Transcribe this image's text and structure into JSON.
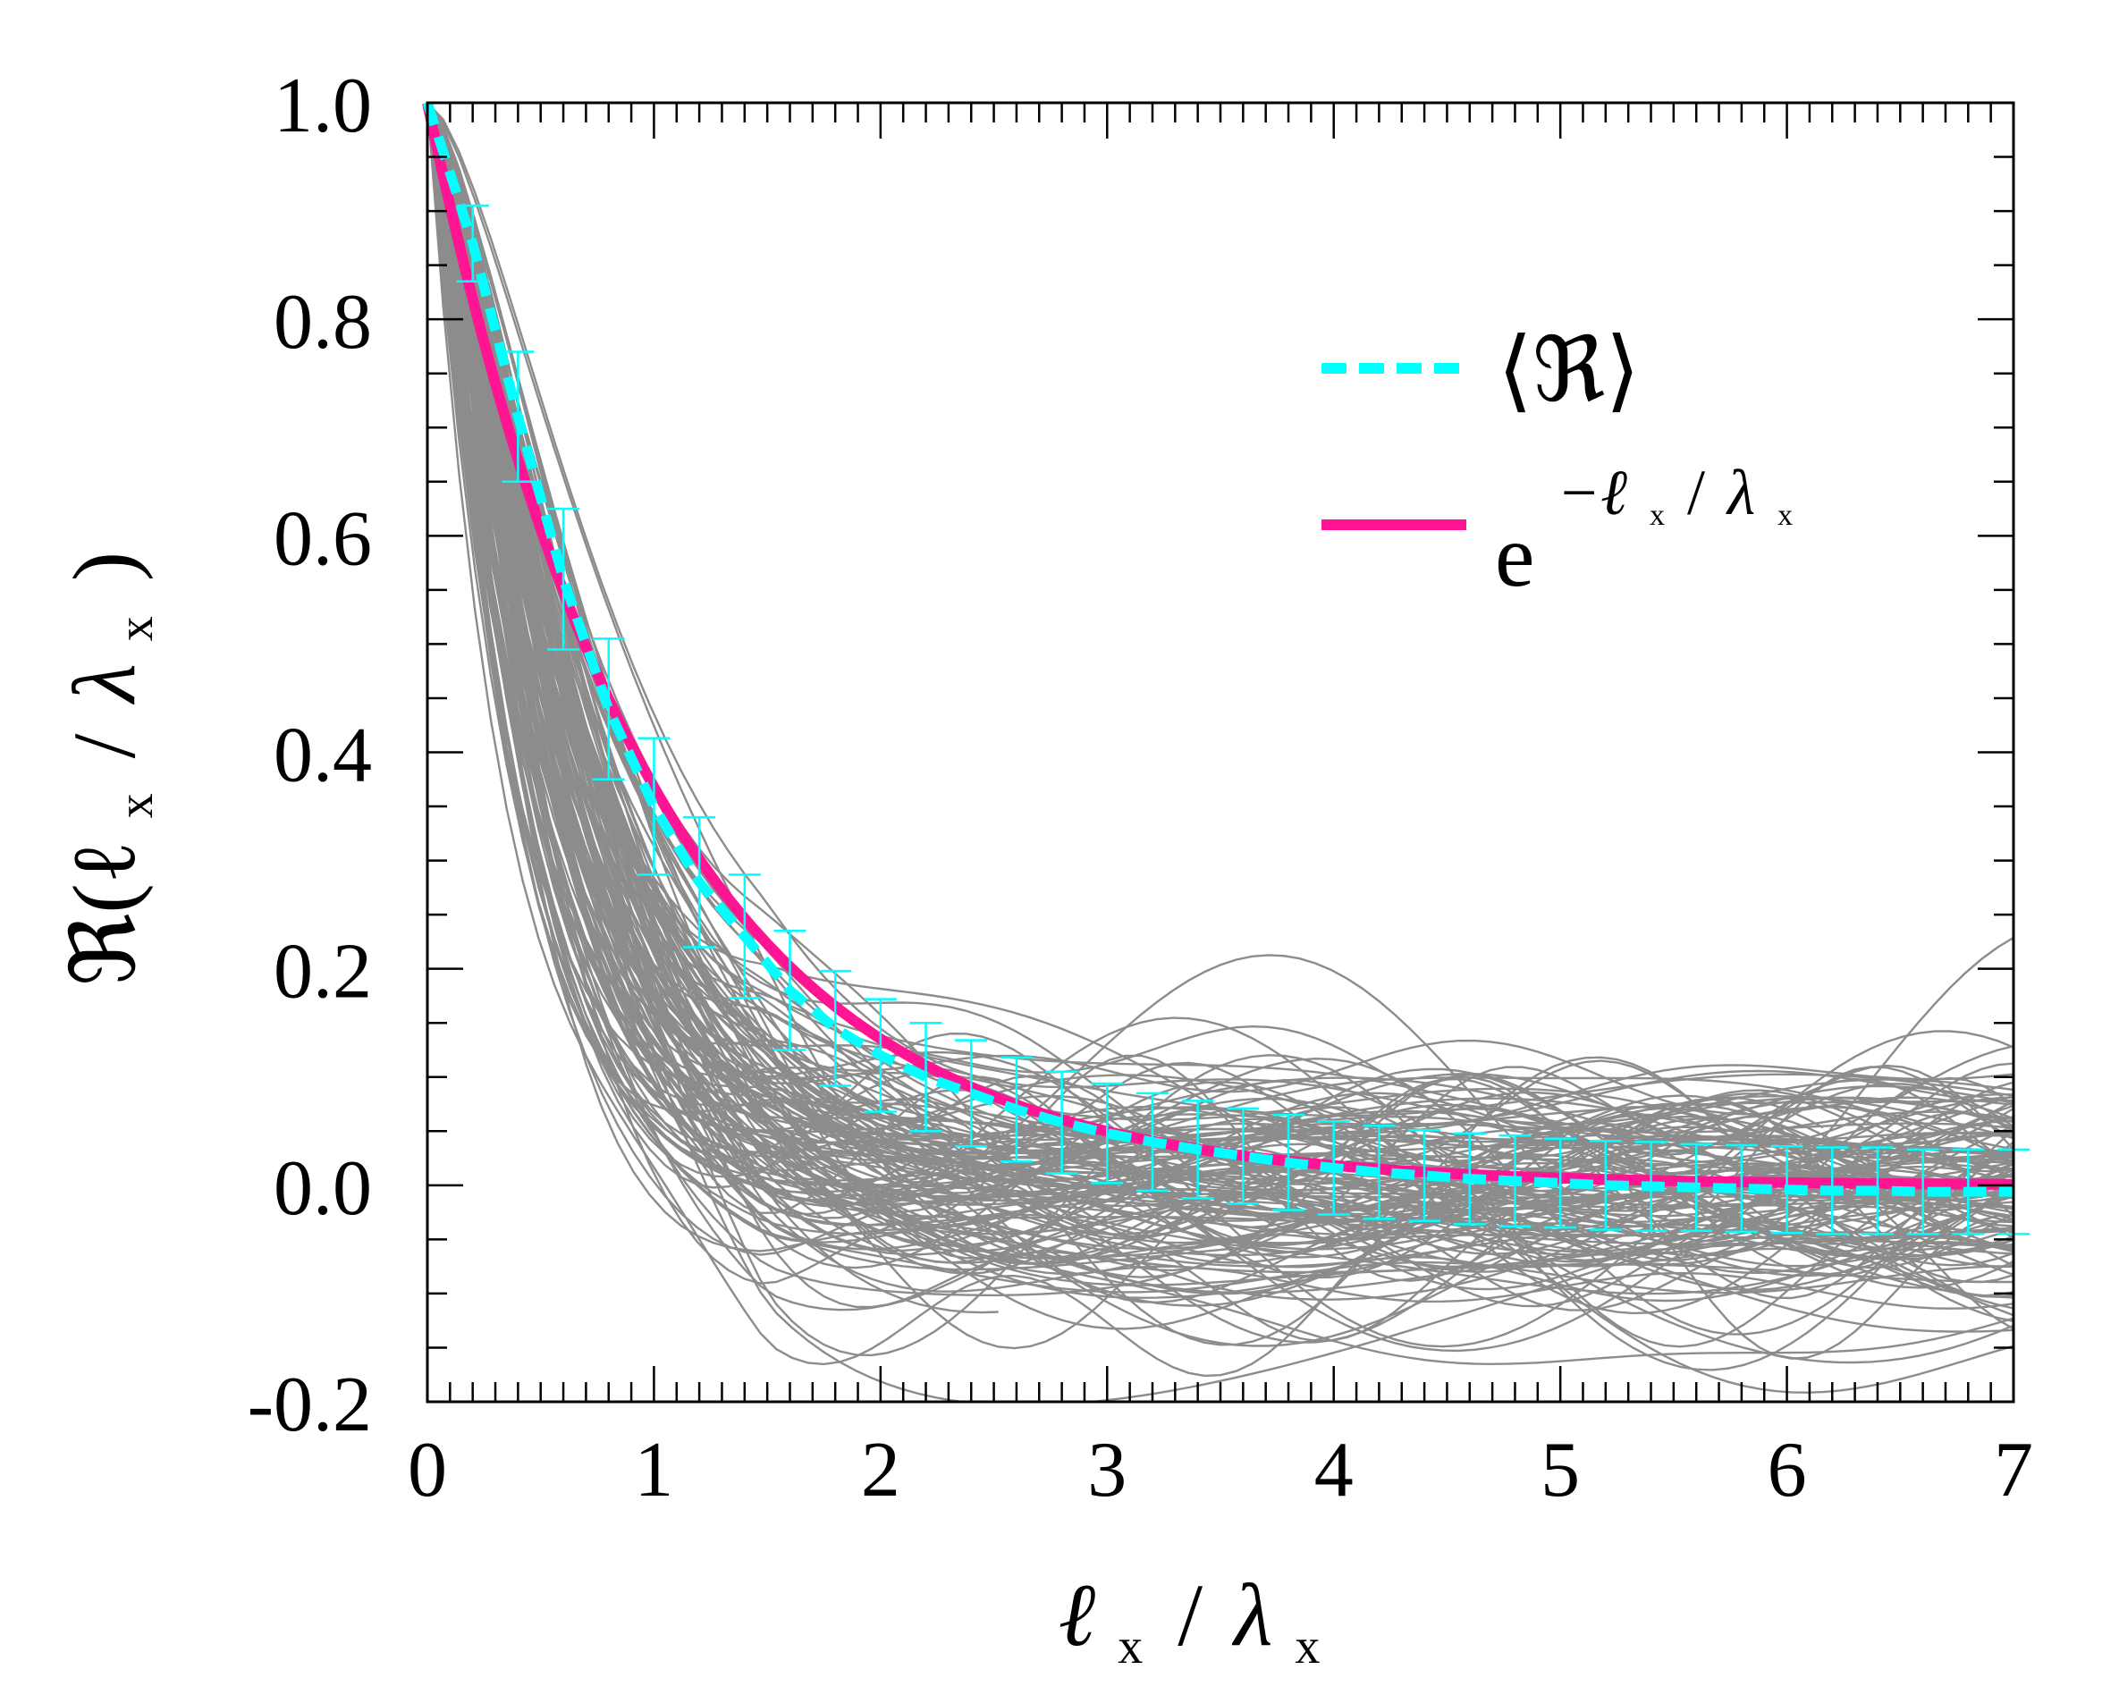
{
  "chart_data": {
    "type": "line",
    "title": "",
    "xlabel": {
      "main": "ℓ",
      "sub1": "x",
      "slash": "/",
      "lambda": "λ",
      "sub2": "x"
    },
    "ylabel": {
      "main": "ℜ(ℓ",
      "sub1": "x",
      "slash": "/",
      "lambda": "λ",
      "sub2": "x",
      "close": ")"
    },
    "xlim": [
      0,
      7
    ],
    "ylim": [
      -0.2,
      1.0
    ],
    "x_ticks": [
      0,
      1,
      2,
      3,
      4,
      5,
      6,
      7
    ],
    "x_tick_labels": [
      "0",
      "1",
      "2",
      "3",
      "4",
      "5",
      "6",
      "7"
    ],
    "y_ticks": [
      -0.2,
      0.0,
      0.2,
      0.4,
      0.6,
      0.8,
      1.0
    ],
    "y_tick_labels": [
      "-0.2",
      "0.0",
      "0.2",
      "0.4",
      "0.6",
      "0.8",
      "1.0"
    ],
    "colors": {
      "samples": "#8c8c8c",
      "mean": "#00ffff",
      "fit": "#ff1493",
      "axis": "#000000"
    },
    "ensemble": {
      "count": 150,
      "description_free": true
    },
    "series": [
      {
        "name": "⟨ℜ⟩",
        "style": "dashed",
        "color": "#00ffff",
        "x": [
          0,
          0.2,
          0.4,
          0.6,
          0.8,
          1.0,
          1.2,
          1.4,
          1.6,
          1.8,
          2.0,
          2.2,
          2.4,
          2.6,
          2.8,
          3.0,
          3.2,
          3.4,
          3.6,
          3.8,
          4.0,
          4.2,
          4.4,
          4.6,
          4.8,
          5.0,
          5.2,
          5.4,
          5.6,
          5.8,
          6.0,
          6.2,
          6.4,
          6.6,
          6.8,
          7.0
        ],
        "y": [
          1.0,
          0.87,
          0.71,
          0.56,
          0.44,
          0.35,
          0.28,
          0.23,
          0.18,
          0.145,
          0.12,
          0.1,
          0.085,
          0.07,
          0.058,
          0.048,
          0.04,
          0.033,
          0.027,
          0.021,
          0.016,
          0.012,
          0.009,
          0.006,
          0.004,
          0.002,
          0.0,
          -0.001,
          -0.002,
          -0.003,
          -0.004,
          -0.005,
          -0.005,
          -0.006,
          -0.006,
          -0.006
        ],
        "error": [
          0.0,
          0.035,
          0.06,
          0.065,
          0.065,
          0.063,
          0.06,
          0.057,
          0.055,
          0.053,
          0.052,
          0.05,
          0.049,
          0.048,
          0.047,
          0.046,
          0.045,
          0.045,
          0.044,
          0.044,
          0.043,
          0.043,
          0.042,
          0.042,
          0.042,
          0.041,
          0.041,
          0.041,
          0.04,
          0.04,
          0.04,
          0.04,
          0.04,
          0.039,
          0.039,
          0.039
        ]
      },
      {
        "name": "e^{-ℓx/λx}",
        "style": "solid",
        "color": "#ff1493",
        "function": "exp(-x)"
      }
    ],
    "legend": {
      "position": "top-right",
      "mean_label": "⟨ℜ⟩",
      "fit_base": "e",
      "fit_exp": "−ℓ",
      "fit_exp_sub1": "x",
      "fit_exp_slash": "/",
      "fit_exp_lambda": "λ",
      "fit_exp_sub2": "x"
    }
  }
}
